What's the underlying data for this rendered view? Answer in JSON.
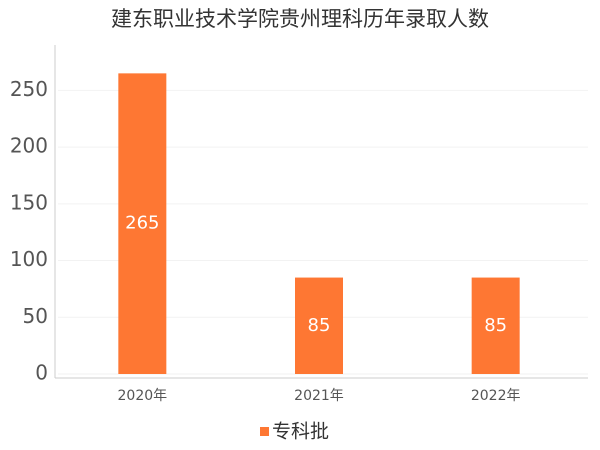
{
  "chart_data": {
    "type": "bar",
    "title": "建东职业技术学院贵州理科历年录取人数",
    "categories": [
      "2020年",
      "2021年",
      "2022年"
    ],
    "series": [
      {
        "name": "专科批",
        "color": "#fe7733",
        "values": [
          265,
          85,
          85
        ]
      }
    ],
    "ylim": [
      0,
      290
    ],
    "yticks": [
      0,
      50,
      100,
      150,
      200,
      250
    ],
    "grid": true,
    "legend": "bottom"
  }
}
